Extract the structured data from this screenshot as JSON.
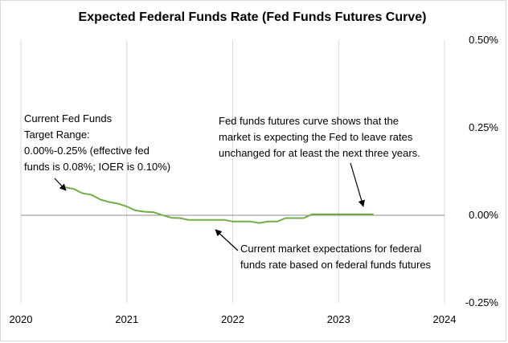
{
  "chart_data": {
    "type": "line",
    "title": "Expected Federal Funds Rate (Fed Funds Futures Curve)",
    "xlabel": "",
    "ylabel": "",
    "x_tick_labels": [
      "2020",
      "2021",
      "2022",
      "2023",
      "2024"
    ],
    "y_tick_labels": [
      "0.50%",
      "0.25%",
      "0.00%",
      "-0.25%"
    ],
    "x_ticks": [
      2020,
      2021,
      2022,
      2023,
      2024
    ],
    "y_ticks": [
      0.5,
      0.25,
      0.0,
      -0.25
    ],
    "xlim": [
      2020,
      2024
    ],
    "ylim": [
      -0.25,
      0.5
    ],
    "y_axis_side": "right",
    "grid": "vertical",
    "series_color": "#70ad47",
    "series": [
      {
        "name": "",
        "x": [
          2020.42,
          2020.5,
          2020.58,
          2020.67,
          2020.75,
          2020.83,
          2020.92,
          2021.0,
          2021.08,
          2021.17,
          2021.25,
          2021.33,
          2021.42,
          2021.5,
          2021.58,
          2021.67,
          2021.75,
          2021.83,
          2021.92,
          2022.0,
          2022.08,
          2022.17,
          2022.25,
          2022.33,
          2022.42,
          2022.5,
          2022.58,
          2022.67,
          2022.75,
          2022.83,
          2022.92,
          2023.0,
          2023.08,
          2023.17,
          2023.25,
          2023.33
        ],
        "values": [
          0.08,
          0.075,
          0.063,
          0.058,
          0.045,
          0.038,
          0.033,
          0.025,
          0.014,
          0.01,
          0.009,
          0.001,
          -0.007,
          -0.008,
          -0.013,
          -0.013,
          -0.013,
          -0.013,
          -0.013,
          -0.018,
          -0.018,
          -0.018,
          -0.022,
          -0.018,
          -0.018,
          -0.008,
          -0.008,
          -0.008,
          0.003,
          0.003,
          0.003,
          0.003,
          0.003,
          0.003,
          0.003,
          0.003
        ]
      }
    ],
    "annotations": {
      "current_target": [
        "Current Fed Funds",
        "Target Range:",
        "0.00%-0.25% (effective fed",
        "funds is 0.08%; IOER is 0.10%)"
      ],
      "futures_curve": [
        "Fed funds futures curve shows that the",
        "market is expecting the Fed to leave rates",
        "unchanged for at least the next three years."
      ],
      "market_expectations": [
        "Current market expectations for federal",
        "funds rate based on federal funds futures"
      ]
    }
  }
}
